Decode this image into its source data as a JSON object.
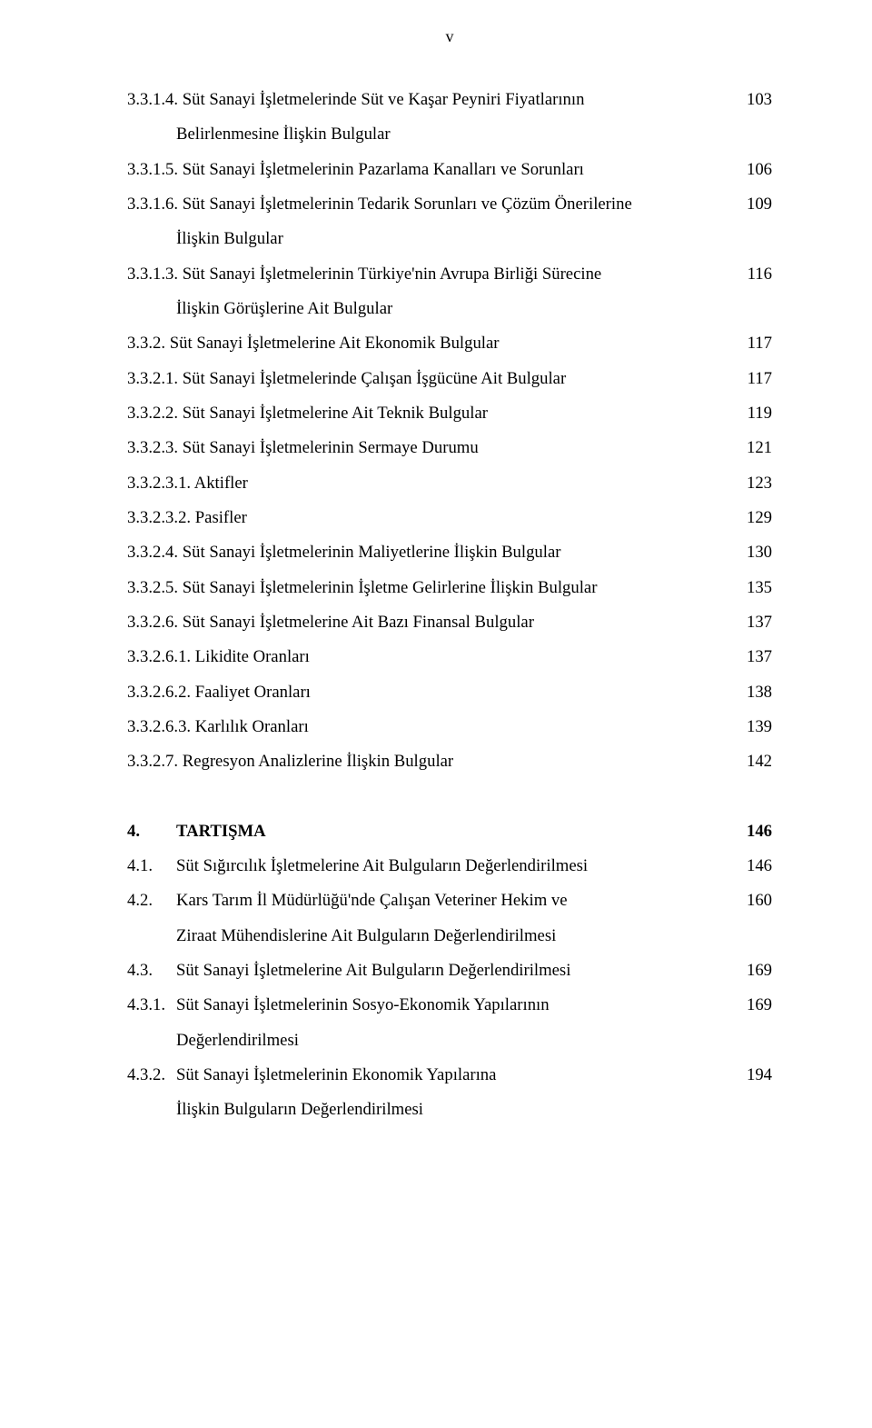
{
  "page_number_roman": "v",
  "text_color": "#000000",
  "background_color": "#ffffff",
  "font_family": "Times New Roman",
  "base_fontsize_pt": 14,
  "lines": [
    {
      "text": "3.3.1.4. Süt Sanayi İşletmelerinde Süt ve Kaşar Peyniri Fiyatlarının",
      "page": "103",
      "cont": "Belirlenmesine İlişkin Bulgular"
    },
    {
      "text": "3.3.1.5. Süt Sanayi İşletmelerinin Pazarlama Kanalları ve Sorunları",
      "page": "106"
    },
    {
      "text": "3.3.1.6. Süt Sanayi İşletmelerinin Tedarik Sorunları ve Çözüm Önerilerine",
      "page": "109",
      "cont": "İlişkin Bulgular"
    },
    {
      "text": "3.3.1.3. Süt Sanayi İşletmelerinin Türkiye'nin Avrupa Birliği Sürecine",
      "page": "116",
      "cont": "İlişkin Görüşlerine Ait Bulgular"
    },
    {
      "text": "3.3.2. Süt Sanayi İşletmelerine Ait Ekonomik Bulgular",
      "page": "117"
    },
    {
      "text": "3.3.2.1. Süt Sanayi İşletmelerinde Çalışan İşgücüne Ait Bulgular",
      "page": "117"
    },
    {
      "text": "3.3.2.2. Süt Sanayi İşletmelerine Ait Teknik Bulgular",
      "page": "119"
    },
    {
      "text": "3.3.2.3. Süt Sanayi İşletmelerinin Sermaye Durumu",
      "page": "121"
    },
    {
      "text": "3.3.2.3.1. Aktifler",
      "page": "123"
    },
    {
      "text": "3.3.2.3.2. Pasifler",
      "page": "129"
    },
    {
      "text": "3.3.2.4. Süt Sanayi İşletmelerinin Maliyetlerine İlişkin Bulgular",
      "page": "130"
    },
    {
      "text": "3.3.2.5. Süt Sanayi İşletmelerinin İşletme Gelirlerine İlişkin Bulgular",
      "page": "135"
    },
    {
      "text": "3.3.2.6. Süt Sanayi İşletmelerine Ait Bazı Finansal Bulgular",
      "page": "137"
    },
    {
      "text": "3.3.2.6.1. Likidite Oranları",
      "page": "137"
    },
    {
      "text": "3.3.2.6.2. Faaliyet Oranları",
      "page": "138"
    },
    {
      "text": "3.3.2.6.3. Karlılık Oranları",
      "page": "139"
    },
    {
      "text": "3.3.2.7. Regresyon Analizlerine İlişkin Bulgular",
      "page": "142"
    }
  ],
  "section4": [
    {
      "num": "4.",
      "title": "TARTIŞMA",
      "page": "146",
      "bold": true
    },
    {
      "num": "4.1.",
      "title": "Süt Sığırcılık İşletmelerine Ait Bulguların Değerlendirilmesi",
      "page": "146"
    },
    {
      "num": "4.2.",
      "title": "Kars Tarım İl Müdürlüğü'nde Çalışan Veteriner Hekim ve",
      "page": "160",
      "cont": "Ziraat Mühendislerine Ait Bulguların Değerlendirilmesi"
    },
    {
      "num": "4.3.",
      "title": "Süt Sanayi İşletmelerine Ait Bulguların Değerlendirilmesi",
      "page": "169"
    },
    {
      "num": "4.3.1.",
      "title": "Süt Sanayi İşletmelerinin Sosyo-Ekonomik Yapılarının",
      "page": "169",
      "cont": "Değerlendirilmesi"
    },
    {
      "num": "4.3.2.",
      "title": "Süt Sanayi İşletmelerinin Ekonomik Yapılarına",
      "page": "194",
      "cont": "İlişkin Bulguların Değerlendirilmesi"
    }
  ]
}
